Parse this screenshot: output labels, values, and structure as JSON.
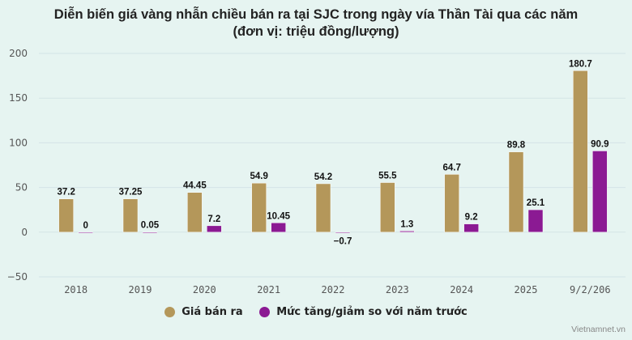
{
  "chart_data": {
    "type": "bar",
    "title": "Diễn biến giá vàng nhẫn chiều bán ra tại SJC trong ngày vía Thần Tài qua các năm",
    "subtitle": "(đơn vị: triệu đồng/lượng)",
    "categories": [
      "2018",
      "2019",
      "2020",
      "2021",
      "2022",
      "2023",
      "2024",
      "2025",
      "9/2/206"
    ],
    "series": [
      {
        "name": "Giá bán ra",
        "color": "#b4975a",
        "values": [
          37.2,
          37.25,
          44.45,
          54.9,
          54.2,
          55.5,
          64.7,
          89.8,
          180.7
        ],
        "labels": [
          "37.2",
          "37.25",
          "44.45",
          "54.9",
          "54.2",
          "55.5",
          "64.7",
          "89.8",
          "180.7"
        ]
      },
      {
        "name": "Mức tăng/giảm so với năm trước",
        "color": "#8b1a93",
        "values": [
          0,
          0.05,
          7.2,
          10.45,
          -0.7,
          1.3,
          9.2,
          25.1,
          90.9
        ],
        "labels": [
          "0",
          "0.05",
          "7.2",
          "10.45",
          "−0.7",
          "1.3",
          "9.2",
          "25.1",
          "90.9"
        ]
      }
    ],
    "ylim": [
      -50,
      200
    ],
    "yticks": [
      -50,
      0,
      50,
      100,
      150,
      200
    ],
    "ytick_labels": [
      "−50",
      "0",
      "50",
      "100",
      "150",
      "200"
    ],
    "grid": true,
    "legend": "bottom"
  },
  "credit": "Vietnamnet.vn"
}
